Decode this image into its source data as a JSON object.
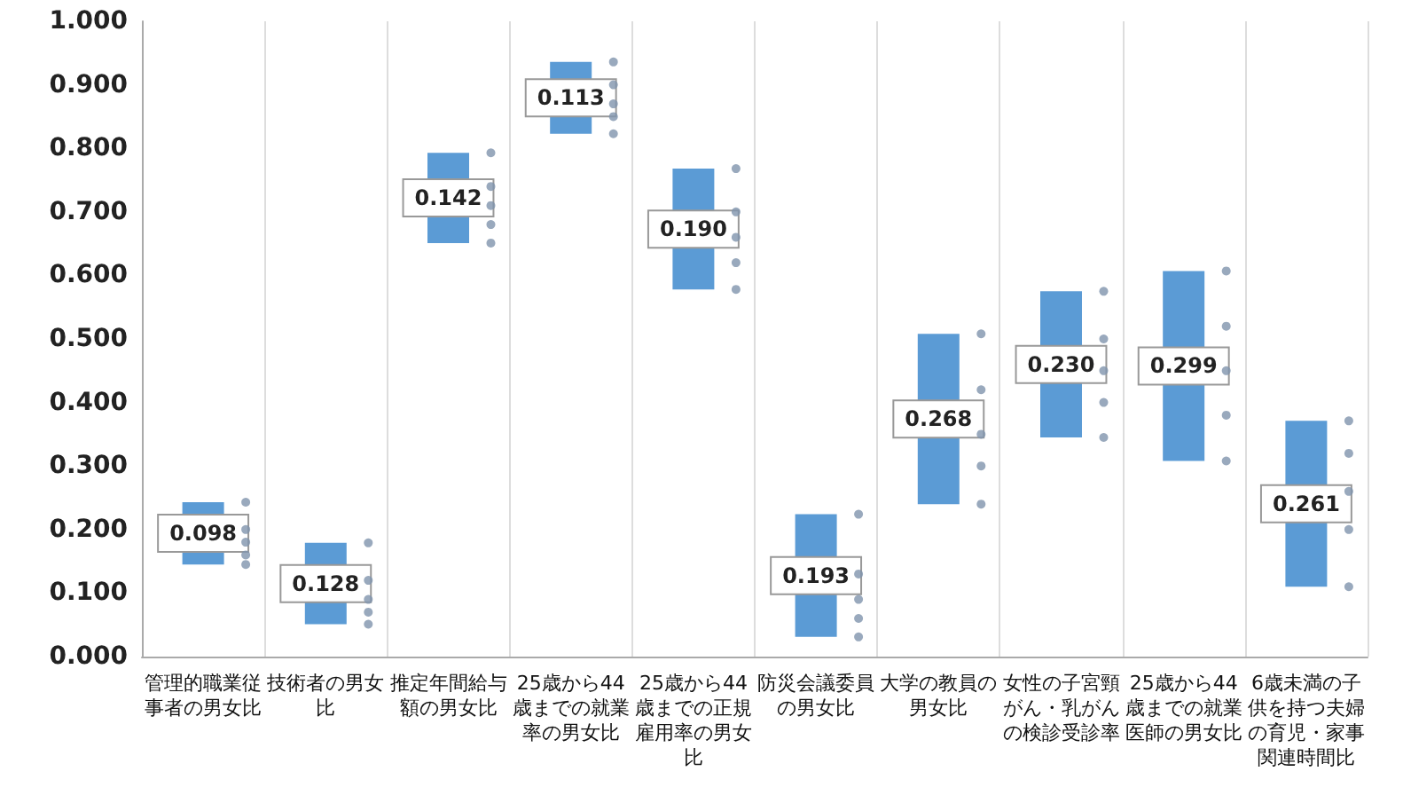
{
  "chart_data": {
    "type": "bar",
    "categories": [
      "管理的職業従事者の男女比",
      "技術者の男女比",
      "推定年間給与額の男女比",
      "25歳から44歳までの就業率の男女比",
      "25歳から44歳までの正規雇用率の男女比",
      "防災会議委員の男女比",
      "大学の教員の男女比",
      "女性の子宮頸がん・乳がんの検診受診率",
      "25歳から44歳までの就業医師の男女比",
      "6歳未満の子供を持つ夫婦の育児・家事関連時間比"
    ],
    "series": [
      {
        "type": "bar",
        "color": "#5b9bd5",
        "base": [
          0.145,
          0.051,
          0.651,
          0.823,
          0.578,
          0.031,
          0.24,
          0.345,
          0.308,
          0.11
        ],
        "values": [
          0.098,
          0.128,
          0.142,
          0.113,
          0.19,
          0.193,
          0.268,
          0.23,
          0.299,
          0.261
        ],
        "value_labels": [
          "0.098",
          "0.128",
          "0.142",
          "0.113",
          "0.190",
          "0.193",
          "0.268",
          "0.230",
          "0.299",
          "0.261"
        ]
      },
      {
        "type": "scatter",
        "color": "#7f93ad",
        "x": [
          "管理的職業従事者の男女比",
          "管理的職業従事者の男女比",
          "管理的職業従事者の男女比",
          "管理的職業従事者の男女比",
          "管理的職業従事者の男女比",
          "技術者の男女比",
          "技術者の男女比",
          "技術者の男女比",
          "技術者の男女比",
          "技術者の男女比",
          "推定年間給与額の男女比",
          "推定年間給与額の男女比",
          "推定年間給与額の男女比",
          "推定年間給与額の男女比",
          "推定年間給与額の男女比",
          "25歳から44歳までの就業率の男女比",
          "25歳から44歳までの就業率の男女比",
          "25歳から44歳までの就業率の男女比",
          "25歳から44歳までの就業率の男女比",
          "25歳から44歳までの就業率の男女比",
          "25歳から44歳までの正規雇用率の男女比",
          "25歳から44歳までの正規雇用率の男女比",
          "25歳から44歳までの正規雇用率の男女比",
          "25歳から44歳までの正規雇用率の男女比",
          "25歳から44歳までの正規雇用率の男女比",
          "防災会議委員の男女比",
          "防災会議委員の男女比",
          "防災会議委員の男女比",
          "防災会議委員の男女比",
          "防災会議委員の男女比",
          "大学の教員の男女比",
          "大学の教員の男女比",
          "大学の教員の男女比",
          "大学の教員の男女比",
          "大学の教員の男女比",
          "女性の子宮頸がん・乳がんの検診受診率",
          "女性の子宮頸がん・乳がんの検診受診率",
          "女性の子宮頸がん・乳がんの検診受診率",
          "女性の子宮頸がん・乳がんの検診受診率",
          "女性の子宮頸がん・乳がんの検診受診率",
          "25歳から44歳までの就業医師の男女比",
          "25歳から44歳までの就業医師の男女比",
          "25歳から44歳までの就業医師の男女比",
          "25歳から44歳までの就業医師の男女比",
          "25歳から44歳までの就業医師の男女比",
          "6歳未満の子供を持つ夫婦の育児・家事関連時間比",
          "6歳未満の子供を持つ夫婦の育児・家事関連時間比",
          "6歳未満の子供を持つ夫婦の育児・家事関連時間比",
          "6歳未満の子供を持つ夫婦の育児・家事関連時間比",
          "6歳未満の子供を持つ夫婦の育児・家事関連時間比"
        ],
        "values": [
          0.145,
          0.16,
          0.18,
          0.2,
          0.243,
          0.051,
          0.07,
          0.09,
          0.12,
          0.179,
          0.651,
          0.68,
          0.71,
          0.74,
          0.793,
          0.823,
          0.85,
          0.87,
          0.9,
          0.936,
          0.578,
          0.62,
          0.66,
          0.7,
          0.768,
          0.031,
          0.06,
          0.09,
          0.13,
          0.224,
          0.24,
          0.3,
          0.35,
          0.42,
          0.508,
          0.345,
          0.4,
          0.45,
          0.5,
          0.575,
          0.308,
          0.38,
          0.45,
          0.52,
          0.607,
          0.11,
          0.2,
          0.26,
          0.32,
          0.371
        ]
      }
    ],
    "ylim": [
      0,
      1
    ],
    "yticks": [
      {
        "value": 0,
        "label": "0.000"
      },
      {
        "value": 0.1,
        "label": "0.100"
      },
      {
        "value": 0.2,
        "label": "0.200"
      },
      {
        "value": 0.3,
        "label": "0.300"
      },
      {
        "value": 0.4,
        "label": "0.400"
      },
      {
        "value": 0.5,
        "label": "0.500"
      },
      {
        "value": 0.6,
        "label": "0.600"
      },
      {
        "value": 0.7,
        "label": "0.700"
      },
      {
        "value": 0.8,
        "label": "0.800"
      },
      {
        "value": 0.9,
        "label": "0.900"
      },
      {
        "value": 1,
        "label": "1.000"
      }
    ],
    "grid": "x"
  }
}
